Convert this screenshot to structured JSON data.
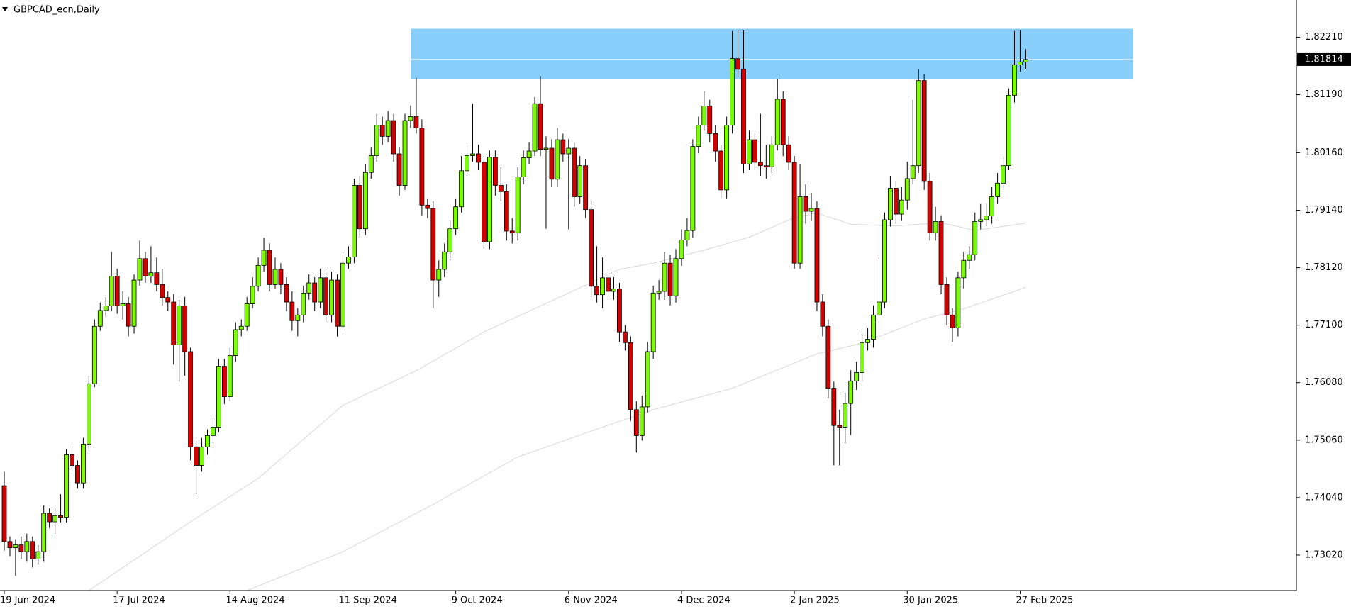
{
  "chart_data": {
    "type": "candlestick",
    "title": "GBPCAD_ecn,Daily",
    "categories": [
      "19 Jun 2024",
      null,
      null,
      null,
      null,
      null,
      null,
      null,
      null,
      null,
      null,
      null,
      null,
      null,
      null,
      null,
      null,
      null,
      null,
      null,
      "17 Jul 2024",
      null,
      null,
      null,
      null,
      null,
      null,
      null,
      null,
      null,
      null,
      null,
      null,
      null,
      null,
      null,
      null,
      null,
      null,
      null,
      "14 Aug 2024",
      null,
      null,
      null,
      null,
      null,
      null,
      null,
      null,
      null,
      null,
      null,
      null,
      null,
      null,
      null,
      null,
      null,
      null,
      null,
      "11 Sep 2024",
      null,
      null,
      null,
      null,
      null,
      null,
      null,
      null,
      null,
      null,
      null,
      null,
      null,
      null,
      null,
      null,
      null,
      null,
      null,
      "9 Oct 2024",
      null,
      null,
      null,
      null,
      null,
      null,
      null,
      null,
      null,
      null,
      null,
      null,
      null,
      null,
      null,
      null,
      null,
      null,
      null,
      "6 Nov 2024",
      null,
      null,
      null,
      null,
      null,
      null,
      null,
      null,
      null,
      null,
      null,
      null,
      null,
      null,
      null,
      null,
      null,
      null,
      null,
      "4 Dec 2024",
      null,
      null,
      null,
      null,
      null,
      null,
      null,
      null,
      null,
      null,
      null,
      null,
      null,
      null,
      null,
      null,
      null,
      null,
      null,
      "2 Jan 2025",
      null,
      null,
      null,
      null,
      null,
      null,
      null,
      null,
      null,
      null,
      null,
      null,
      null,
      null,
      null,
      null,
      null,
      null,
      null,
      "30 Jan 2025",
      null,
      null,
      null,
      null,
      null,
      null,
      null,
      null,
      null,
      null,
      null,
      null,
      null,
      null,
      null,
      null,
      null,
      null,
      null,
      "27 Feb 2025",
      null
    ],
    "open": [
      1.7425,
      1.7326,
      1.7315,
      1.732,
      1.7308,
      1.7326,
      1.7295,
      1.7308,
      1.7376,
      1.7361,
      1.7372,
      1.7369,
      1.748,
      1.7461,
      1.743,
      1.7499,
      1.7606,
      1.7708,
      1.7736,
      1.7744,
      1.7797,
      1.7744,
      1.7748,
      1.7708,
      1.779,
      1.7828,
      1.7797,
      1.7803,
      1.7782,
      1.7759,
      1.7751,
      1.7675,
      1.7744,
      1.7663,
      1.7494,
      1.7461,
      1.7494,
      1.7514,
      1.7529,
      1.7637,
      1.7583,
      1.7656,
      1.7702,
      1.7708,
      1.7748,
      1.7779,
      1.7816,
      1.7843,
      1.7782,
      1.7809,
      1.7782,
      1.7751,
      1.7718,
      1.7728,
      1.7767,
      1.7785,
      1.7751,
      1.7794,
      1.7728,
      1.779,
      1.7708,
      1.782,
      1.7831,
      1.7958,
      1.7881,
      1.7981,
      1.8011,
      1.8065,
      1.8045,
      1.8073,
      1.8014,
      1.7958,
      1.8073,
      1.808,
      1.806,
      1.7923,
      1.7917,
      1.779,
      1.7809,
      1.784,
      1.7881,
      1.792,
      1.7984,
      1.8011,
      1.8014,
      1.7999,
      1.7858,
      1.8008,
      1.7958,
      1.7947,
      1.7877,
      1.7874,
      1.7973,
      1.8007,
      1.8019,
      1.8103,
      1.8022,
      1.8024,
      1.7969,
      1.8039,
      1.8014,
      1.8024,
      1.7938,
      1.7993,
      1.7915,
      1.7779,
      1.7764,
      1.7794,
      1.777,
      1.7774,
      1.7698,
      1.7679,
      1.756,
      1.7514,
      1.7565,
      1.7663,
      1.7767,
      1.777,
      1.782,
      1.7762,
      1.7828,
      1.7861,
      1.7878,
      1.8027,
      1.8065,
      1.8099,
      1.805,
      1.8019,
      1.795,
      1.8065,
      1.8183,
      1.8164,
      1.7996,
      1.8039,
      1.7999,
      1.7993,
      1.7991,
      1.803,
      1.8111,
      1.803,
      1.7999,
      1.782,
      1.7938,
      1.7912,
      1.7917,
      1.7751,
      1.7708,
      1.7598,
      1.7532,
      1.7529,
      1.7571,
      1.7611,
      1.7626,
      1.7679,
      1.7685,
      1.7728,
      1.7751,
      1.7897,
      1.7953,
      1.7907,
      1.7932,
      1.797,
      1.7993,
      1.8144,
      1.7965,
      1.7874,
      1.7894,
      1.7782,
      1.7728,
      1.7705,
      1.7794,
      1.7825,
      1.7835,
      1.7894,
      1.7897,
      1.7904,
      1.7938,
      1.7962,
      1.7993,
      1.8118,
      1.8172,
      1.8177
    ],
    "high": [
      1.745,
      1.7335,
      1.733,
      1.7335,
      1.734,
      1.7335,
      1.732,
      1.739,
      1.7385,
      1.7385,
      1.741,
      1.749,
      1.7495,
      1.747,
      1.751,
      1.762,
      1.772,
      1.775,
      1.776,
      1.784,
      1.781,
      1.777,
      1.776,
      1.78,
      1.786,
      1.784,
      1.785,
      1.783,
      1.781,
      1.777,
      1.7765,
      1.7755,
      1.776,
      1.767,
      1.7505,
      1.751,
      1.7525,
      1.7545,
      1.765,
      1.765,
      1.767,
      1.7715,
      1.772,
      1.776,
      1.7795,
      1.783,
      1.7865,
      1.7855,
      1.783,
      1.782,
      1.7795,
      1.777,
      1.774,
      1.778,
      1.78,
      1.7795,
      1.781,
      1.7805,
      1.7805,
      1.78,
      1.7835,
      1.785,
      1.797,
      1.7975,
      1.7995,
      1.8025,
      1.8085,
      1.808,
      1.809,
      1.8085,
      1.8025,
      1.8085,
      1.81,
      1.8149,
      1.8075,
      1.7935,
      1.793,
      1.7825,
      1.7855,
      1.7895,
      1.7935,
      1.801,
      1.803,
      1.8103,
      1.803,
      1.801,
      1.802,
      1.802,
      1.799,
      1.796,
      1.79,
      1.799,
      1.802,
      1.8035,
      1.8115,
      1.8152,
      1.8045,
      1.804,
      1.806,
      1.805,
      1.804,
      1.8035,
      1.801,
      1.8005,
      1.793,
      1.785,
      1.783,
      1.781,
      1.7795,
      1.7785,
      1.771,
      1.769,
      1.7575,
      1.7585,
      1.768,
      1.778,
      1.779,
      1.784,
      1.7835,
      1.7845,
      1.788,
      1.79,
      1.804,
      1.808,
      1.8125,
      1.811,
      1.8065,
      1.803,
      1.808,
      1.8232,
      1.8233,
      1.8233,
      1.8055,
      1.805,
      1.8085,
      1.803,
      1.8045,
      1.8147,
      1.8125,
      1.8045,
      1.801,
      1.7995,
      1.796,
      1.7945,
      1.793,
      1.7765,
      1.772,
      1.761,
      1.756,
      1.759,
      1.763,
      1.7645,
      1.7695,
      1.7705,
      1.7745,
      1.783,
      1.791,
      1.7975,
      1.7965,
      1.7955,
      1.8,
      1.811,
      1.8164,
      1.8155,
      1.798,
      1.792,
      1.7905,
      1.7795,
      1.774,
      1.7805,
      1.784,
      1.785,
      1.791,
      1.7925,
      1.7925,
      1.7955,
      1.798,
      1.801,
      1.813,
      1.8232,
      1.8233,
      1.82
    ],
    "low": [
      1.731,
      1.73,
      1.7265,
      1.7295,
      1.729,
      1.728,
      1.7285,
      1.729,
      1.735,
      1.734,
      1.736,
      1.736,
      1.745,
      1.742,
      1.742,
      1.749,
      1.76,
      1.77,
      1.7725,
      1.7735,
      1.773,
      1.772,
      1.769,
      1.7695,
      1.778,
      1.7785,
      1.7785,
      1.777,
      1.7745,
      1.7735,
      1.764,
      1.761,
      1.762,
      1.747,
      1.741,
      1.745,
      1.748,
      1.75,
      1.752,
      1.757,
      1.7575,
      1.7645,
      1.769,
      1.77,
      1.774,
      1.777,
      1.7805,
      1.777,
      1.7775,
      1.7765,
      1.7735,
      1.77,
      1.769,
      1.7715,
      1.7755,
      1.7735,
      1.774,
      1.7715,
      1.7715,
      1.769,
      1.77,
      1.781,
      1.782,
      1.7865,
      1.787,
      1.797,
      1.8,
      1.803,
      1.8035,
      1.8,
      1.794,
      1.795,
      1.806,
      1.805,
      1.7905,
      1.79,
      1.774,
      1.776,
      1.7795,
      1.7825,
      1.787,
      1.791,
      1.7975,
      1.8,
      1.7985,
      1.7845,
      1.7845,
      1.794,
      1.793,
      1.786,
      1.7855,
      1.786,
      1.796,
      1.7995,
      1.801,
      1.801,
      1.7881,
      1.7955,
      1.7955,
      1.8,
      1.788,
      1.792,
      1.7925,
      1.79,
      1.776,
      1.775,
      1.774,
      1.7755,
      1.7755,
      1.768,
      1.7665,
      1.754,
      1.7484,
      1.7505,
      1.7555,
      1.765,
      1.7755,
      1.7755,
      1.7745,
      1.775,
      1.7815,
      1.785,
      1.7865,
      1.8015,
      1.8055,
      1.8035,
      1.8,
      1.7935,
      1.7935,
      1.805,
      1.815,
      1.798,
      1.7985,
      1.7985,
      1.7975,
      1.797,
      1.798,
      1.802,
      1.801,
      1.7985,
      1.781,
      1.781,
      1.789,
      1.7895,
      1.7735,
      1.769,
      1.758,
      1.7461,
      1.7461,
      1.75,
      1.7515,
      1.7595,
      1.761,
      1.7665,
      1.767,
      1.7715,
      1.774,
      1.7885,
      1.789,
      1.7895,
      1.7915,
      1.796,
      1.798,
      1.795,
      1.786,
      1.786,
      1.7765,
      1.771,
      1.768,
      1.769,
      1.7775,
      1.781,
      1.7825,
      1.788,
      1.7885,
      1.789,
      1.7925,
      1.795,
      1.7985,
      1.8105,
      1.816,
      1.8165
    ],
    "close": [
      1.7326,
      1.7315,
      1.732,
      1.7308,
      1.7326,
      1.7295,
      1.7308,
      1.7376,
      1.7361,
      1.7372,
      1.7369,
      1.748,
      1.7461,
      1.743,
      1.7499,
      1.7606,
      1.7708,
      1.7736,
      1.7744,
      1.7797,
      1.7744,
      1.7748,
      1.7708,
      1.779,
      1.7828,
      1.7797,
      1.7803,
      1.7782,
      1.7759,
      1.7751,
      1.7675,
      1.7744,
      1.7663,
      1.7494,
      1.7461,
      1.7494,
      1.7514,
      1.7529,
      1.7637,
      1.7583,
      1.7656,
      1.7702,
      1.7708,
      1.7748,
      1.7779,
      1.7816,
      1.7843,
      1.7782,
      1.7809,
      1.7782,
      1.7751,
      1.7718,
      1.7728,
      1.7767,
      1.7785,
      1.7751,
      1.7794,
      1.7728,
      1.779,
      1.7708,
      1.782,
      1.7831,
      1.7958,
      1.7881,
      1.7981,
      1.8011,
      1.8065,
      1.8045,
      1.8073,
      1.8014,
      1.7958,
      1.8073,
      1.808,
      1.806,
      1.7923,
      1.7917,
      1.779,
      1.7809,
      1.784,
      1.7881,
      1.792,
      1.7984,
      1.8011,
      1.8014,
      1.7999,
      1.7858,
      1.8008,
      1.7958,
      1.7947,
      1.7877,
      1.7874,
      1.7973,
      1.8007,
      1.8019,
      1.8103,
      1.8022,
      1.8024,
      1.7969,
      1.8039,
      1.8014,
      1.8024,
      1.7938,
      1.7993,
      1.7915,
      1.7779,
      1.7764,
      1.7794,
      1.777,
      1.7774,
      1.7698,
      1.7679,
      1.756,
      1.7514,
      1.7565,
      1.7663,
      1.7767,
      1.777,
      1.782,
      1.7762,
      1.7828,
      1.7861,
      1.7878,
      1.8027,
      1.8065,
      1.8099,
      1.805,
      1.8019,
      1.795,
      1.8065,
      1.8183,
      1.8164,
      1.7996,
      1.8039,
      1.7999,
      1.7993,
      1.7991,
      1.803,
      1.8111,
      1.803,
      1.7999,
      1.782,
      1.7938,
      1.7912,
      1.7917,
      1.7751,
      1.7708,
      1.7598,
      1.7532,
      1.7529,
      1.7571,
      1.7611,
      1.7626,
      1.7679,
      1.7685,
      1.7728,
      1.7751,
      1.7897,
      1.7953,
      1.7907,
      1.7932,
      1.797,
      1.7993,
      1.8144,
      1.7965,
      1.7874,
      1.7894,
      1.7782,
      1.7728,
      1.7705,
      1.7794,
      1.7825,
      1.7835,
      1.7894,
      1.7897,
      1.7904,
      1.7938,
      1.7962,
      1.7993,
      1.8118,
      1.8172,
      1.8177,
      1.81814
    ],
    "up_color": "#7cfc00",
    "down_color": "#d40000",
    "ylim": [
      1.7239,
      1.8287
    ],
    "yticks": [
      {
        "value": 1.8221,
        "label": "1.82210"
      },
      {
        "value": 1.8119,
        "label": "1.81190"
      },
      {
        "value": 1.8016,
        "label": "1.80160"
      },
      {
        "value": 1.7914,
        "label": "1.79140"
      },
      {
        "value": 1.7812,
        "label": "1.78120"
      },
      {
        "value": 1.771,
        "label": "1.77100"
      },
      {
        "value": 1.7608,
        "label": "1.76080"
      },
      {
        "value": 1.7506,
        "label": "1.75060"
      },
      {
        "value": 1.7404,
        "label": "1.74040"
      },
      {
        "value": 1.7302,
        "label": "1.73020"
      }
    ],
    "moving_averages": [
      {
        "color": "#d8d8d8",
        "x": [
          15,
          33,
          45,
          60,
          73,
          85,
          100,
          109,
          115,
          124,
          132,
          140,
          144,
          150,
          158,
          166,
          172,
          181
        ],
        "values": [
          1.7239,
          1.7361,
          1.7438,
          1.7568,
          1.7629,
          1.7698,
          1.7767,
          1.7809,
          1.782,
          1.7843,
          1.7866,
          1.7901,
          1.7909,
          1.7889,
          1.7886,
          1.7892,
          1.7878,
          1.7891
        ]
      },
      {
        "color": "#d8d8d8",
        "x": [
          43,
          60,
          76,
          91,
          106,
          115,
          129,
          144,
          152,
          163,
          170,
          181
        ],
        "values": [
          1.7239,
          1.7308,
          1.7392,
          1.7476,
          1.7529,
          1.756,
          1.7598,
          1.7659,
          1.7678,
          1.7721,
          1.7739,
          1.7777
        ]
      }
    ],
    "zone": {
      "x": [
        72,
        200
      ],
      "y": [
        1.8146,
        1.8236
      ],
      "color": "#87cefa"
    }
  }
}
